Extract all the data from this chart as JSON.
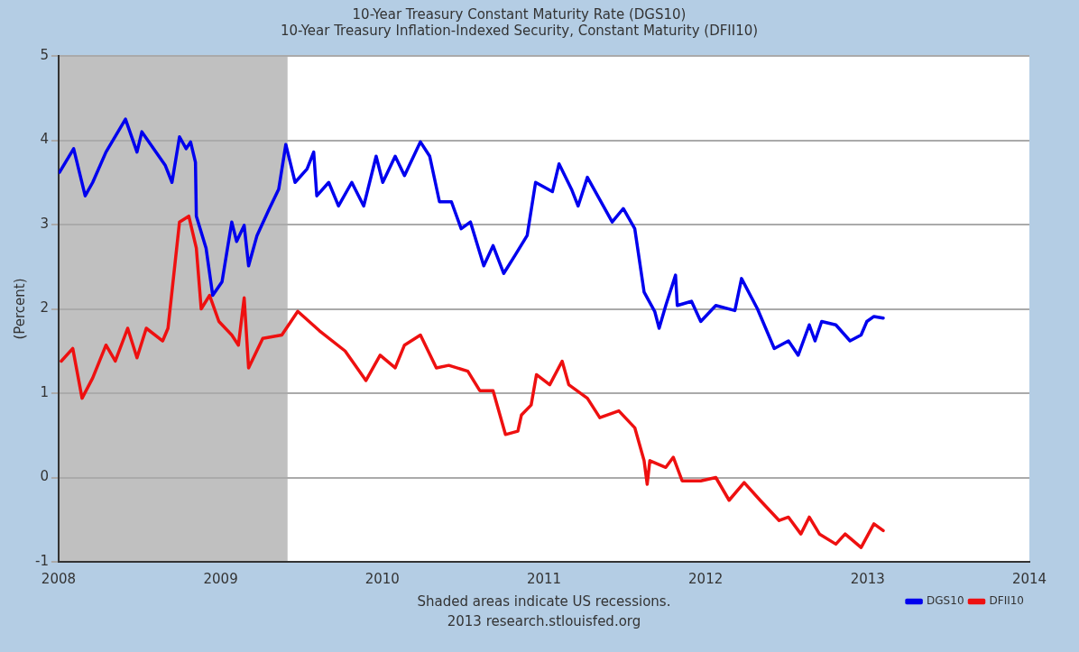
{
  "chart_data": {
    "type": "line",
    "title": "10-Year Treasury Constant Maturity Rate (DGS10)",
    "subtitle": "10-Year Treasury Inflation-Indexed Security, Constant Maturity (DFII10)",
    "ylabel": "(Percent)",
    "annotations": [
      "Shaded areas indicate US recessions.",
      "2013 research.stlouisfed.org"
    ],
    "xlim": [
      "2008",
      "2014"
    ],
    "xticks": [
      "2008",
      "2009",
      "2010",
      "2011",
      "2012",
      "2013",
      "2014"
    ],
    "ylim": [
      -1,
      5
    ],
    "yticks": [
      -1,
      0,
      1,
      2,
      3,
      4,
      5
    ],
    "grid": "y",
    "legend": "bottom right",
    "marker": "none",
    "line_style": "solid",
    "bands": [
      {
        "axis": "x",
        "from": "2008",
        "to": "2009-06",
        "color": "#c0c0c0"
      }
    ],
    "series": [
      {
        "name": "DGS10",
        "color": "#0000ee",
        "x": [
          "2008-01-03",
          "2008-02-04",
          "2008-03-01",
          "2008-03-18",
          "2008-04-17",
          "2008-05-31",
          "2008-06-26",
          "2008-07-07",
          "2008-08-29",
          "2008-09-13",
          "2008-09-30",
          "2008-10-15",
          "2008-10-25",
          "2008-11-05",
          "2008-11-07",
          "2008-11-29",
          "2008-12-14",
          "2009-01-04",
          "2009-01-26",
          "2009-02-06",
          "2009-02-23",
          "2009-03-05",
          "2009-03-24",
          "2009-04-21",
          "2009-05-12",
          "2009-05-28",
          "2009-06-18",
          "2009-07-15",
          "2009-07-30",
          "2009-08-06",
          "2009-09-02",
          "2009-09-24",
          "2009-10-24",
          "2009-11-20",
          "2009-12-18",
          "2010-01-02",
          "2010-01-30",
          "2010-02-20",
          "2010-03-28",
          "2010-04-18",
          "2010-05-10",
          "2010-06-06",
          "2010-06-28",
          "2010-07-19",
          "2010-08-18",
          "2010-09-08",
          "2010-10-02",
          "2010-10-27",
          "2010-11-24",
          "2010-12-13",
          "2011-01-20",
          "2011-02-04",
          "2011-03-04",
          "2011-03-19",
          "2011-04-09",
          "2011-06-04",
          "2011-06-29",
          "2011-07-25",
          "2011-08-15",
          "2011-09-08",
          "2011-09-18",
          "2011-10-03",
          "2011-10-25",
          "2011-10-29",
          "2011-11-30",
          "2011-12-21",
          "2012-01-24",
          "2012-03-07",
          "2012-03-22",
          "2012-04-27",
          "2012-06-04",
          "2012-07-06",
          "2012-07-28",
          "2012-08-22",
          "2012-09-04",
          "2012-09-19",
          "2012-10-21",
          "2012-11-22",
          "2012-12-17",
          "2012-12-30",
          "2013-01-15",
          "2013-02-05"
        ],
        "values": [
          3.62,
          3.9,
          3.34,
          3.5,
          3.86,
          4.25,
          3.86,
          4.1,
          3.7,
          3.5,
          4.04,
          3.9,
          3.98,
          3.74,
          3.1,
          2.72,
          2.16,
          2.32,
          3.03,
          2.8,
          2.99,
          2.51,
          2.87,
          3.19,
          3.42,
          3.95,
          3.5,
          3.66,
          3.86,
          3.34,
          3.5,
          3.22,
          3.5,
          3.22,
          3.81,
          3.5,
          3.81,
          3.58,
          3.98,
          3.81,
          3.27,
          3.27,
          2.95,
          3.03,
          2.51,
          2.75,
          2.42,
          2.63,
          2.87,
          3.5,
          3.39,
          3.72,
          3.42,
          3.22,
          3.56,
          3.03,
          3.19,
          2.95,
          2.2,
          1.97,
          1.77,
          2.04,
          2.4,
          2.04,
          2.09,
          1.85,
          2.04,
          1.98,
          2.36,
          2.0,
          1.53,
          1.62,
          1.45,
          1.81,
          1.62,
          1.85,
          1.81,
          1.62,
          1.69,
          1.85,
          1.91,
          1.89
        ]
      },
      {
        "name": "DFII10",
        "color": "#ee1010",
        "x": [
          "2008-01-07",
          "2008-02-02",
          "2008-02-23",
          "2008-03-18",
          "2008-04-17",
          "2008-05-08",
          "2008-06-05",
          "2008-06-26",
          "2008-07-17",
          "2008-08-23",
          "2008-09-04",
          "2008-09-30",
          "2008-10-21",
          "2008-11-07",
          "2008-11-18",
          "2008-12-07",
          "2008-12-28",
          "2009-01-26",
          "2009-02-10",
          "2009-02-23",
          "2009-03-05",
          "2009-04-06",
          "2009-05-19",
          "2009-06-24",
          "2009-08-12",
          "2009-10-09",
          "2009-11-25",
          "2009-12-27",
          "2010-01-30",
          "2010-02-20",
          "2010-03-28",
          "2010-05-03",
          "2010-05-31",
          "2010-07-13",
          "2010-08-09",
          "2010-09-08",
          "2010-10-06",
          "2010-11-03",
          "2010-11-11",
          "2010-12-03",
          "2010-12-15",
          "2011-01-14",
          "2011-02-11",
          "2011-02-26",
          "2011-04-09",
          "2011-05-07",
          "2011-06-19",
          "2011-07-25",
          "2011-08-15",
          "2011-08-22",
          "2011-08-28",
          "2011-10-03",
          "2011-10-20",
          "2011-11-09",
          "2011-12-21",
          "2012-01-24",
          "2012-02-23",
          "2012-03-28",
          "2012-05-03",
          "2012-06-15",
          "2012-07-06",
          "2012-08-03",
          "2012-08-22",
          "2012-09-14",
          "2012-10-21",
          "2012-11-11",
          "2012-12-17",
          "2013-01-15",
          "2013-02-05"
        ],
        "values": [
          1.38,
          1.53,
          0.94,
          1.18,
          1.57,
          1.38,
          1.77,
          1.42,
          1.77,
          1.62,
          1.77,
          3.03,
          3.1,
          2.72,
          2.0,
          2.16,
          1.85,
          1.69,
          1.57,
          2.13,
          1.3,
          1.65,
          1.69,
          1.97,
          1.74,
          1.5,
          1.15,
          1.45,
          1.3,
          1.57,
          1.69,
          1.3,
          1.33,
          1.26,
          1.03,
          1.03,
          0.51,
          0.55,
          0.74,
          0.86,
          1.22,
          1.1,
          1.38,
          1.1,
          0.94,
          0.71,
          0.79,
          0.59,
          0.2,
          -0.08,
          0.2,
          0.12,
          0.24,
          -0.04,
          -0.04,
          0.0,
          -0.27,
          -0.06,
          -0.27,
          -0.51,
          -0.47,
          -0.67,
          -0.47,
          -0.67,
          -0.79,
          -0.67,
          -0.83,
          -0.55,
          -0.63
        ]
      }
    ]
  }
}
